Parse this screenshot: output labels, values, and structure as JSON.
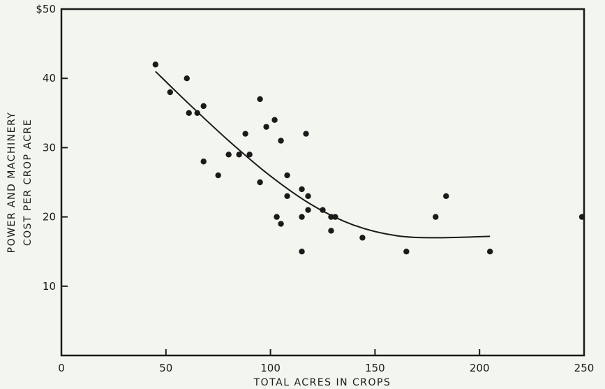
{
  "chart_data": {
    "type": "scatter",
    "title": "",
    "xlabel": "TOTAL ACRES IN CROPS",
    "ylabel_lines": [
      "POWER AND MACHINERY",
      "COST PER CROP ACRE"
    ],
    "xlim": [
      0,
      250
    ],
    "ylim": [
      0,
      50
    ],
    "x_ticks": [
      0,
      50,
      100,
      150,
      200,
      250
    ],
    "x_tick_labels": [
      "0",
      "50",
      "100",
      "150",
      "200",
      "250"
    ],
    "y_ticks": [
      10,
      20,
      30,
      40,
      50
    ],
    "y_tick_labels": [
      "10",
      "20",
      "30",
      "40",
      "$50"
    ],
    "grid": false,
    "marker_color": "#1a1a1a",
    "points": [
      {
        "x": 45,
        "y": 42
      },
      {
        "x": 52,
        "y": 38
      },
      {
        "x": 60,
        "y": 40
      },
      {
        "x": 61,
        "y": 35
      },
      {
        "x": 65,
        "y": 35
      },
      {
        "x": 68,
        "y": 36
      },
      {
        "x": 68,
        "y": 28
      },
      {
        "x": 75,
        "y": 26
      },
      {
        "x": 80,
        "y": 29
      },
      {
        "x": 85,
        "y": 29
      },
      {
        "x": 88,
        "y": 32
      },
      {
        "x": 90,
        "y": 29
      },
      {
        "x": 95,
        "y": 37
      },
      {
        "x": 95,
        "y": 25
      },
      {
        "x": 98,
        "y": 33
      },
      {
        "x": 102,
        "y": 34
      },
      {
        "x": 103,
        "y": 20
      },
      {
        "x": 105,
        "y": 31
      },
      {
        "x": 105,
        "y": 19
      },
      {
        "x": 108,
        "y": 26
      },
      {
        "x": 108,
        "y": 23
      },
      {
        "x": 115,
        "y": 24
      },
      {
        "x": 115,
        "y": 20
      },
      {
        "x": 115,
        "y": 15
      },
      {
        "x": 117,
        "y": 32
      },
      {
        "x": 118,
        "y": 21
      },
      {
        "x": 118,
        "y": 23
      },
      {
        "x": 125,
        "y": 21
      },
      {
        "x": 129,
        "y": 20
      },
      {
        "x": 129,
        "y": 18
      },
      {
        "x": 131,
        "y": 20
      },
      {
        "x": 144,
        "y": 17
      },
      {
        "x": 165,
        "y": 15
      },
      {
        "x": 179,
        "y": 20
      },
      {
        "x": 184,
        "y": 23
      },
      {
        "x": 205,
        "y": 15
      },
      {
        "x": 249,
        "y": 20
      }
    ],
    "trend_curve": [
      {
        "x": 45,
        "y": 41
      },
      {
        "x": 60,
        "y": 36.6
      },
      {
        "x": 80,
        "y": 31
      },
      {
        "x": 100,
        "y": 25.9
      },
      {
        "x": 120,
        "y": 21.7
      },
      {
        "x": 140,
        "y": 18.8
      },
      {
        "x": 160,
        "y": 17.3
      },
      {
        "x": 180,
        "y": 17
      },
      {
        "x": 205,
        "y": 17.2
      }
    ]
  }
}
